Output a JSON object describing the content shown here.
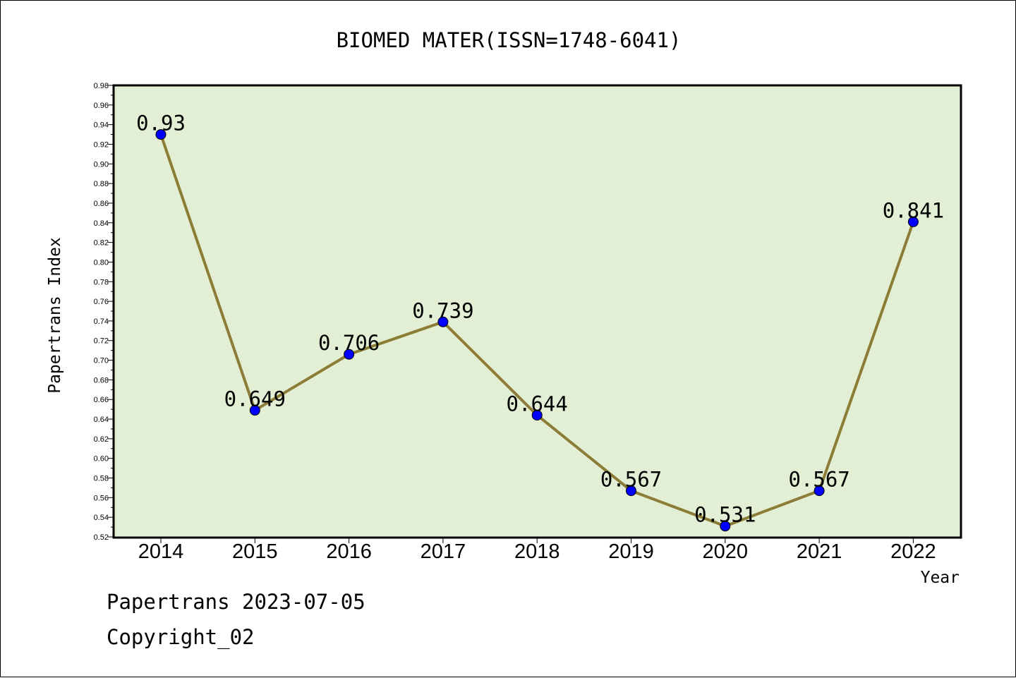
{
  "chart_data": {
    "type": "line",
    "title": "BIOMED MATER(ISSN=1748-6041)",
    "xlabel": "Year",
    "ylabel": "Papertrans Index",
    "categories": [
      "2014",
      "2015",
      "2016",
      "2017",
      "2018",
      "2019",
      "2020",
      "2021",
      "2022"
    ],
    "series": [
      {
        "values": [
          0.93,
          0.649,
          0.706,
          0.739,
          0.644,
          0.567,
          0.531,
          0.567,
          0.841
        ]
      }
    ],
    "data_labels": [
      "0.93",
      "0.649",
      "0.706",
      "0.739",
      "0.644",
      "0.567",
      "0.531",
      "0.567",
      "0.841"
    ],
    "ylim": [
      0.52,
      0.98
    ],
    "yticks": [
      "0.52",
      "0.54",
      "0.56",
      "0.58",
      "0.60",
      "0.62",
      "0.64",
      "0.66",
      "0.68",
      "0.70",
      "0.72",
      "0.74",
      "0.76",
      "0.78",
      "0.80",
      "0.82",
      "0.84",
      "0.86",
      "0.88",
      "0.90",
      "0.92",
      "0.94",
      "0.96",
      "0.98"
    ],
    "grid": false,
    "legend": "none",
    "colors": {
      "plot_background": "#e2efd5",
      "line": "#8b7d36",
      "marker": "#0000ff"
    }
  },
  "footer": {
    "source": "Papertrans 2023-07-05",
    "copyright": "Copyright_02"
  }
}
